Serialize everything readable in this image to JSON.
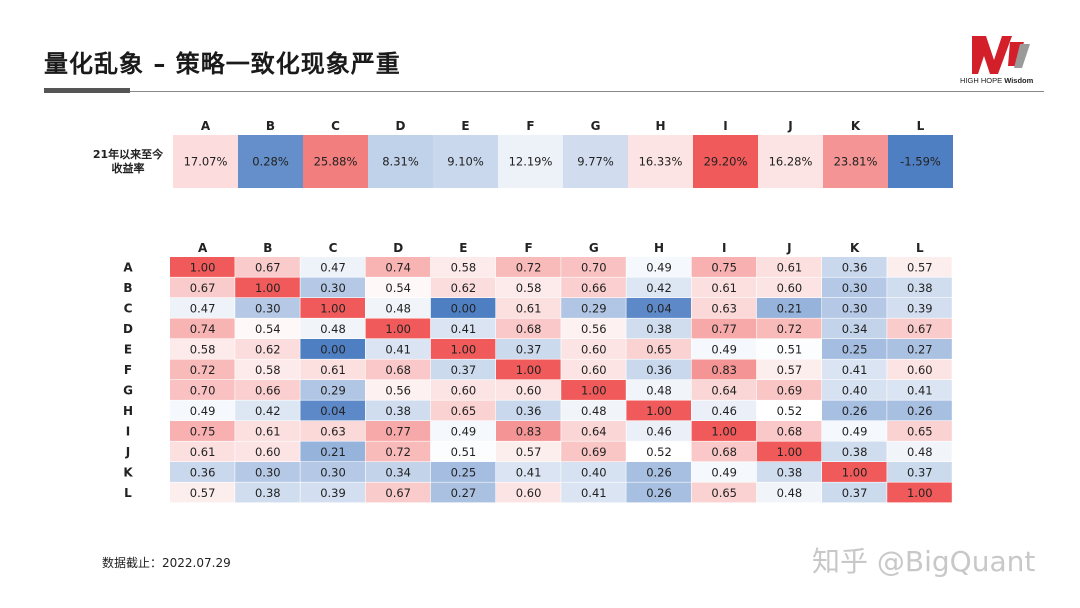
{
  "page": {
    "title": "量化乱象 – 策略一致化现象严重",
    "logo_text_a": "HIGH HOPE ",
    "logo_text_b": "Wisdom",
    "footer": "数据截止：2022.07.29",
    "watermark": "知乎 @BigQuant"
  },
  "chart_data": [
    {
      "type": "heatmap",
      "row_label": "21年以来至今收益率",
      "row_label_lines": [
        "21年以来至今",
        "收益率"
      ],
      "categories": [
        "A",
        "B",
        "C",
        "D",
        "E",
        "F",
        "G",
        "H",
        "I",
        "J",
        "K",
        "L"
      ],
      "values": [
        17.07,
        0.28,
        25.88,
        8.31,
        9.1,
        12.19,
        9.77,
        16.33,
        29.2,
        16.28,
        23.81,
        -1.59
      ],
      "labels": [
        "17.07%",
        "0.28%",
        "25.88%",
        "8.31%",
        "9.10%",
        "12.19%",
        "9.77%",
        "16.33%",
        "29.20%",
        "16.28%",
        "23.81%",
        "-1.59%"
      ],
      "colors": {
        "low": "#4f7fc3",
        "mid": "#ffffff",
        "high": "#f05a5a"
      }
    },
    {
      "type": "heatmap",
      "categories": [
        "A",
        "B",
        "C",
        "D",
        "E",
        "F",
        "G",
        "H",
        "I",
        "J",
        "K",
        "L"
      ],
      "matrix": [
        [
          1.0,
          0.67,
          0.47,
          0.74,
          0.58,
          0.72,
          0.7,
          0.49,
          0.75,
          0.61,
          0.36,
          0.57
        ],
        [
          0.67,
          1.0,
          0.3,
          0.54,
          0.62,
          0.58,
          0.66,
          0.42,
          0.61,
          0.6,
          0.3,
          0.38
        ],
        [
          0.47,
          0.3,
          1.0,
          0.48,
          0.0,
          0.61,
          0.29,
          0.04,
          0.63,
          0.21,
          0.3,
          0.39
        ],
        [
          0.74,
          0.54,
          0.48,
          1.0,
          0.41,
          0.68,
          0.56,
          0.38,
          0.77,
          0.72,
          0.34,
          0.67
        ],
        [
          0.58,
          0.62,
          0.0,
          0.41,
          1.0,
          0.37,
          0.6,
          0.65,
          0.49,
          0.51,
          0.25,
          0.27
        ],
        [
          0.72,
          0.58,
          0.61,
          0.68,
          0.37,
          1.0,
          0.6,
          0.36,
          0.83,
          0.57,
          0.41,
          0.6
        ],
        [
          0.7,
          0.66,
          0.29,
          0.56,
          0.6,
          0.6,
          1.0,
          0.48,
          0.64,
          0.69,
          0.4,
          0.41
        ],
        [
          0.49,
          0.42,
          0.04,
          0.38,
          0.65,
          0.36,
          0.48,
          1.0,
          0.46,
          0.52,
          0.26,
          0.26
        ],
        [
          0.75,
          0.61,
          0.63,
          0.77,
          0.49,
          0.83,
          0.64,
          0.46,
          1.0,
          0.68,
          0.49,
          0.65
        ],
        [
          0.61,
          0.6,
          0.21,
          0.72,
          0.51,
          0.57,
          0.69,
          0.52,
          0.68,
          1.0,
          0.38,
          0.48
        ],
        [
          0.36,
          0.3,
          0.3,
          0.34,
          0.25,
          0.41,
          0.4,
          0.26,
          0.49,
          0.38,
          1.0,
          0.37
        ],
        [
          0.57,
          0.38,
          0.39,
          0.67,
          0.27,
          0.6,
          0.41,
          0.26,
          0.65,
          0.48,
          0.37,
          1.0
        ]
      ],
      "value_range": [
        0,
        1
      ],
      "colors": {
        "low": "#4f7fc3",
        "mid": "#ffffff",
        "high": "#f05a5a"
      }
    }
  ]
}
